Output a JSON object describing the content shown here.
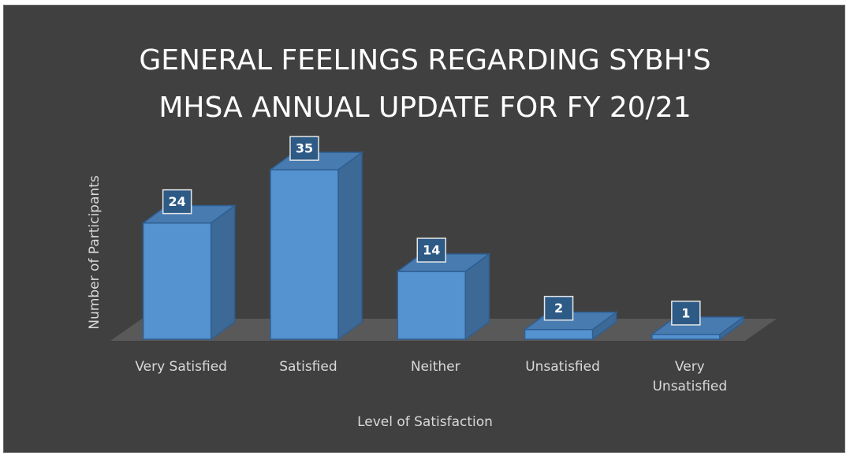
{
  "chart_data": {
    "type": "bar3d",
    "title": [
      "GENERAL FEELINGS REGARDING SYBH'S",
      "MHSA ANNUAL UPDATE FOR FY 20/21"
    ],
    "y_label": "Number of Participants",
    "x_label": "Level of Satisfaction",
    "categories": [
      "Very Satisfied",
      "Satisfied",
      "Neither",
      "Unsatisfied",
      "Very Unsatisfied"
    ],
    "values": [
      24,
      35,
      14,
      2,
      1
    ],
    "color": "#5592d0"
  }
}
